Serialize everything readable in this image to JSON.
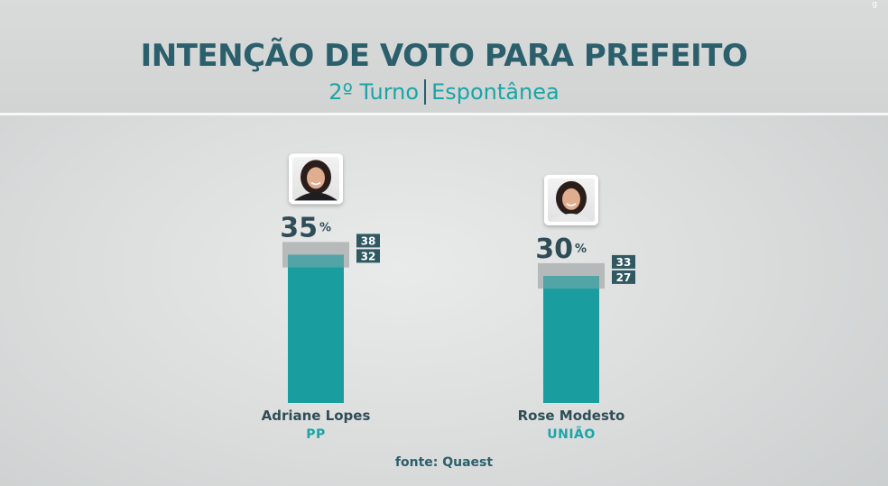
{
  "header": {
    "title": "INTENÇÃO DE VOTO PARA PREFEITO",
    "subtitle_left": "2º Turno",
    "subtitle_right": "Espontânea"
  },
  "colors": {
    "bar": "#1a9d9f",
    "band": "#aeb1b1",
    "value_text": "#2f4d56",
    "range_box": "#2f5861",
    "party_text": "#1aa5a6"
  },
  "chart_data": {
    "type": "bar",
    "categories": [
      "Adriane Lopes",
      "Rose Modesto"
    ],
    "values": [
      35,
      30
    ],
    "value_suffix": "%",
    "upper": [
      38,
      33
    ],
    "lower": [
      32,
      27
    ],
    "parties": [
      "PP",
      "UNIÃO"
    ],
    "ylim": [
      0,
      55
    ],
    "grid": false,
    "legend": "none"
  },
  "source": "fonte: Quaest"
}
